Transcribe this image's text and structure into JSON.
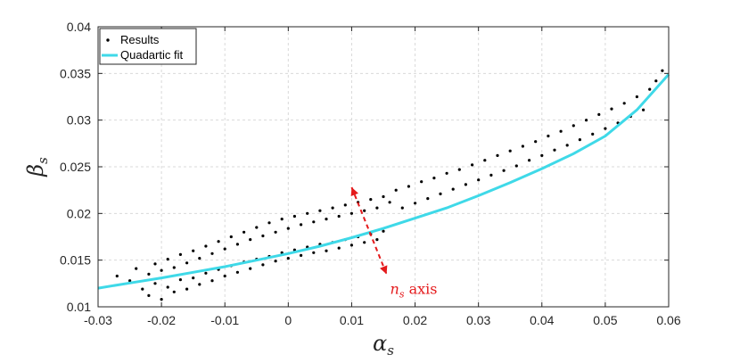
{
  "chart_data": {
    "type": "scatter",
    "title": "",
    "xlabel": "α",
    "xlabel_sub": "s",
    "ylabel": "β",
    "ylabel_sub": "s",
    "xlim": [
      -0.03,
      0.06
    ],
    "ylim": [
      0.01,
      0.04
    ],
    "x_ticks": [
      -0.03,
      -0.02,
      -0.01,
      0,
      0.01,
      0.02,
      0.03,
      0.04,
      0.05,
      0.06
    ],
    "x_tick_labels": [
      "-0.03",
      "-0.02",
      "-0.01",
      "0",
      "0.01",
      "0.02",
      "0.03",
      "0.04",
      "0.05",
      "0.06"
    ],
    "y_ticks": [
      0.01,
      0.015,
      0.02,
      0.025,
      0.03,
      0.035,
      0.04
    ],
    "y_tick_labels": [
      "0.01",
      "0.015",
      "0.02",
      "0.025",
      "0.03",
      "0.035",
      "0.04"
    ],
    "grid": true,
    "legend_position": "top-left",
    "series": [
      {
        "name": "Results",
        "kind": "scatter",
        "color": "#000000",
        "x": [
          -0.027,
          -0.025,
          -0.024,
          -0.023,
          -0.022,
          -0.022,
          -0.021,
          -0.021,
          -0.02,
          -0.02,
          -0.019,
          -0.019,
          -0.018,
          -0.018,
          -0.017,
          -0.017,
          -0.016,
          -0.016,
          -0.015,
          -0.015,
          -0.014,
          -0.014,
          -0.013,
          -0.013,
          -0.012,
          -0.012,
          -0.011,
          -0.011,
          -0.01,
          -0.01,
          -0.009,
          -0.009,
          -0.008,
          -0.008,
          -0.007,
          -0.007,
          -0.006,
          -0.006,
          -0.005,
          -0.005,
          -0.004,
          -0.004,
          -0.003,
          -0.003,
          -0.002,
          -0.002,
          -0.001,
          -0.001,
          0,
          0,
          0.001,
          0.001,
          0.002,
          0.002,
          0.003,
          0.003,
          0.004,
          0.004,
          0.005,
          0.005,
          0.006,
          0.006,
          0.007,
          0.007,
          0.008,
          0.008,
          0.009,
          0.009,
          0.01,
          0.01,
          0.011,
          0.011,
          0.012,
          0.012,
          0.013,
          0.013,
          0.014,
          0.014,
          0.015,
          0.015,
          0.016,
          0.017,
          0.018,
          0.019,
          0.02,
          0.021,
          0.022,
          0.023,
          0.024,
          0.025,
          0.026,
          0.027,
          0.028,
          0.029,
          0.03,
          0.031,
          0.032,
          0.033,
          0.034,
          0.035,
          0.036,
          0.037,
          0.038,
          0.039,
          0.04,
          0.041,
          0.042,
          0.043,
          0.044,
          0.045,
          0.046,
          0.047,
          0.048,
          0.049,
          0.05,
          0.051,
          0.052,
          0.053,
          0.054,
          0.055,
          0.056,
          0.057,
          0.058,
          0.059
        ],
        "y": [
          0.0133,
          0.0128,
          0.0141,
          0.0119,
          0.0135,
          0.0112,
          0.0146,
          0.0125,
          0.0139,
          0.0108,
          0.0151,
          0.0121,
          0.0142,
          0.0116,
          0.0156,
          0.0129,
          0.0147,
          0.0119,
          0.016,
          0.0131,
          0.0152,
          0.0124,
          0.0165,
          0.0136,
          0.0157,
          0.0128,
          0.017,
          0.014,
          0.0162,
          0.0133,
          0.0175,
          0.0144,
          0.0167,
          0.0137,
          0.018,
          0.0148,
          0.0172,
          0.0141,
          0.0185,
          0.0151,
          0.0176,
          0.0145,
          0.019,
          0.0154,
          0.018,
          0.0149,
          0.0194,
          0.0158,
          0.0184,
          0.0152,
          0.0197,
          0.0161,
          0.0188,
          0.0155,
          0.02,
          0.0164,
          0.0191,
          0.0158,
          0.0203,
          0.0167,
          0.0194,
          0.016,
          0.0206,
          0.0169,
          0.0197,
          0.0163,
          0.0209,
          0.0172,
          0.02,
          0.0166,
          0.0212,
          0.0175,
          0.0203,
          0.0169,
          0.0215,
          0.0178,
          0.0206,
          0.0172,
          0.0218,
          0.0181,
          0.0212,
          0.0225,
          0.0206,
          0.0229,
          0.0211,
          0.0234,
          0.0216,
          0.0238,
          0.0221,
          0.0243,
          0.0226,
          0.0247,
          0.0231,
          0.0252,
          0.0236,
          0.0257,
          0.0241,
          0.0262,
          0.0246,
          0.0267,
          0.0251,
          0.0272,
          0.0257,
          0.0277,
          0.0262,
          0.0283,
          0.0268,
          0.0288,
          0.0273,
          0.0294,
          0.0279,
          0.03,
          0.0285,
          0.0306,
          0.0291,
          0.0312,
          0.0297,
          0.0318,
          0.0304,
          0.0325,
          0.0311,
          0.0333,
          0.0342,
          0.0353
        ]
      },
      {
        "name": "Quadartic fit",
        "kind": "line",
        "color": "#3fd9e8",
        "x": [
          -0.03,
          -0.025,
          -0.02,
          -0.015,
          -0.01,
          -0.005,
          0,
          0.005,
          0.01,
          0.015,
          0.02,
          0.025,
          0.03,
          0.035,
          0.04,
          0.045,
          0.05,
          0.055,
          0.06
        ],
        "y": [
          0.012,
          0.01255,
          0.0131,
          0.0137,
          0.0143,
          0.015,
          0.0157,
          0.0165,
          0.0174,
          0.0184,
          0.0195,
          0.0206,
          0.0219,
          0.0233,
          0.0248,
          0.0264,
          0.0283,
          0.0311,
          0.0349
        ]
      }
    ],
    "annotation": {
      "text_italic": "n",
      "text_sub": "s",
      "text_rest": " axis",
      "color": "#e41a1c",
      "arrow_from": [
        0.01,
        0.0228
      ],
      "arrow_to": [
        0.0155,
        0.0135
      ]
    }
  }
}
